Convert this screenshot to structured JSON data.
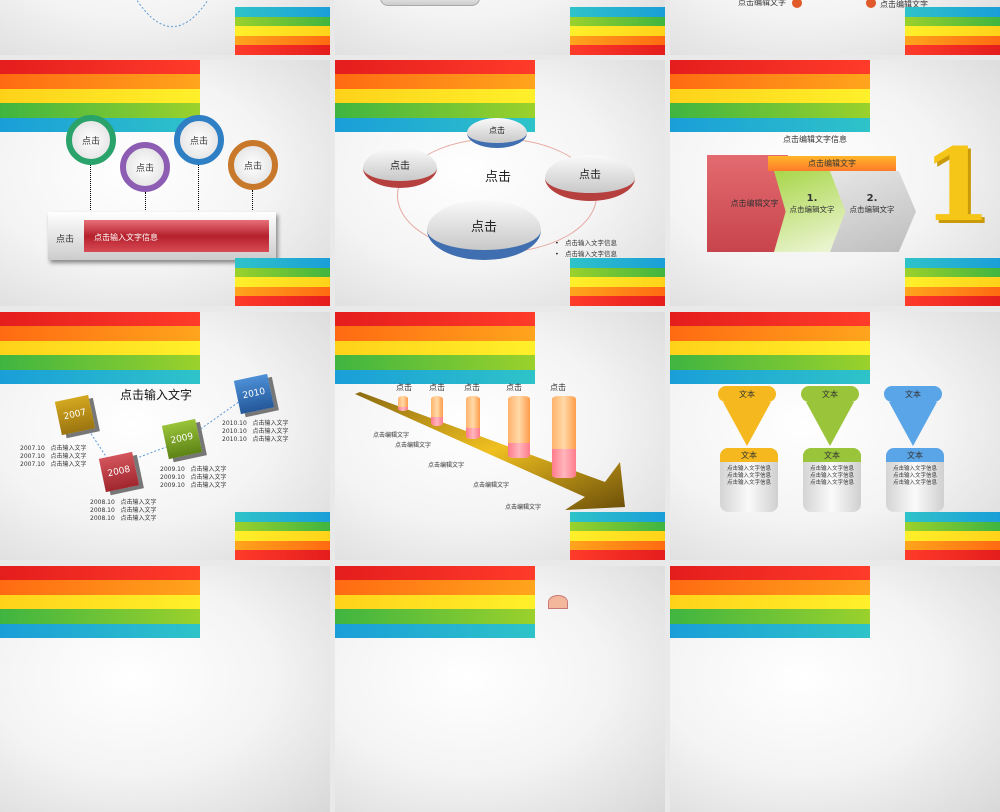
{
  "slides": {
    "s3": {
      "label_a": "点击编辑文字",
      "label_b": "点击编辑文字"
    },
    "s4": {
      "circles": [
        "点击",
        "点击",
        "点击",
        "点击"
      ],
      "bar_label": "点击",
      "bar_text": "点击输入文字信息"
    },
    "s5": {
      "discs": [
        "点击",
        "点击",
        "点击",
        "点击"
      ],
      "center": "点击",
      "bullets": [
        "点击输入文字信息",
        "点击输入文字信息"
      ]
    },
    "s6": {
      "title": "点击编辑文字信息",
      "top_band": "点击编辑文字",
      "left": "点击编辑文字",
      "step1_num": "1.",
      "step1": "点击编辑文字",
      "step2_num": "2.",
      "step2": "点击编辑文字",
      "big_number": "1"
    },
    "s7": {
      "title": "点击输入文字",
      "years": [
        {
          "year": "2007",
          "rows": [
            [
              "2007.10",
              "点击输入文字"
            ],
            [
              "2007.10",
              "点击输入文字"
            ],
            [
              "2007.10",
              "点击输入文字"
            ]
          ],
          "color": "#b08a12"
        },
        {
          "year": "2008",
          "rows": [
            [
              "2008.10",
              "点击输入文字"
            ],
            [
              "2008.10",
              "点击输入文字"
            ],
            [
              "2008.10",
              "点击输入文字"
            ]
          ],
          "color": "#b8333a"
        },
        {
          "year": "2009",
          "rows": [
            [
              "2009.10",
              "点击输入文字"
            ],
            [
              "2009.10",
              "点击输入文字"
            ],
            [
              "2009.10",
              "点击输入文字"
            ]
          ],
          "color": "#7a9a1f"
        },
        {
          "year": "2010",
          "rows": [
            [
              "2010.10",
              "点击输入文字"
            ],
            [
              "2010.10",
              "点击输入文字"
            ],
            [
              "2010.10",
              "点击输入文字"
            ]
          ],
          "color": "#2f6fb3"
        }
      ]
    },
    "s8": {
      "tops": [
        "点击",
        "点击",
        "点击",
        "点击",
        "点击"
      ],
      "labels": [
        "点击编辑文字",
        "点击编辑文字",
        "点击编辑文字",
        "点击编辑文字",
        "点击编辑文字"
      ],
      "fill_levels": [
        0.25,
        0.3,
        0.25,
        0.25,
        0.35
      ]
    },
    "s9": {
      "columns": [
        {
          "pill": "文本",
          "head": "文本",
          "lines": [
            "点击输入文字信息",
            "点击输入文字信息",
            "点击输入文字信息"
          ],
          "color": "#f5b91f"
        },
        {
          "pill": "文本",
          "head": "文本",
          "lines": [
            "点击输入文字信息",
            "点击输入文字信息",
            "点击输入文字信息"
          ],
          "color": "#9ac43a"
        },
        {
          "pill": "文本",
          "head": "文本",
          "lines": [
            "点击输入文字信息",
            "点击输入文字信息",
            "点击输入文字信息"
          ],
          "color": "#5aa5e8"
        }
      ]
    }
  }
}
